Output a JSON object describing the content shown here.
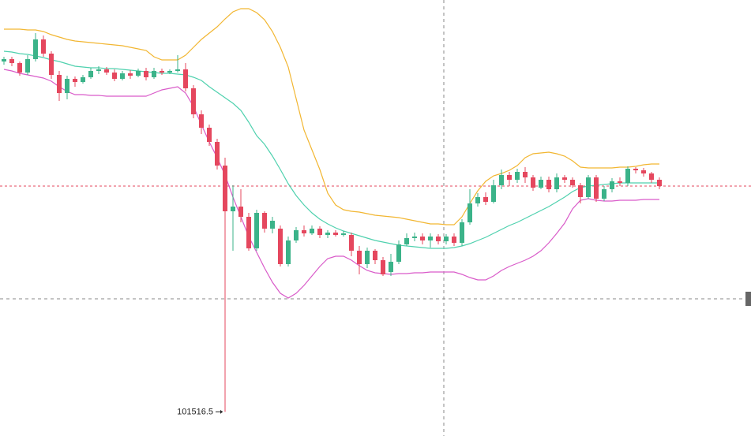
{
  "chart_data": {
    "type": "candlestick",
    "ylim": [
      101210,
      106740
    ],
    "up_color": "#3bb389",
    "down_color": "#e5475e",
    "candles": {
      "open": [
        105960,
        105990,
        105940,
        105820,
        105990,
        106240,
        106060,
        105790,
        105560,
        105740,
        105700,
        105760,
        105840,
        105860,
        105820,
        105740,
        105810,
        105780,
        105840,
        105760,
        105840,
        105820,
        105840,
        105860,
        105620,
        105290,
        105120,
        104940,
        104640,
        104060,
        104120,
        103990,
        103590,
        104040,
        103840,
        103840,
        103390,
        103690,
        103820,
        103780,
        103840,
        103760,
        103790,
        103760,
        103760,
        103560,
        103390,
        103560,
        103440,
        103290,
        103420,
        103640,
        103720,
        103740,
        103690,
        103740,
        103680,
        103740,
        103660,
        103920,
        104160,
        104240,
        104180,
        104390,
        104520,
        104460,
        104560,
        104490,
        104360,
        104460,
        104340,
        104490,
        104460,
        104390,
        104240,
        104490,
        104220,
        104340,
        104440,
        104420,
        104600,
        104580,
        104540,
        104460
      ],
      "high": [
        106020,
        106020,
        105960,
        106040,
        106320,
        106290,
        106090,
        105840,
        105780,
        105770,
        105790,
        105880,
        105900,
        105890,
        105860,
        105840,
        105850,
        105870,
        105880,
        105880,
        105870,
        105860,
        106040,
        105940,
        105660,
        105340,
        105160,
        104980,
        104740,
        104390,
        104340,
        104040,
        104080,
        104060,
        103990,
        103880,
        103740,
        103860,
        103880,
        103880,
        103870,
        103820,
        103820,
        103810,
        103790,
        103620,
        103600,
        103580,
        103480,
        103520,
        103690,
        103780,
        103790,
        103780,
        103780,
        103770,
        103770,
        103780,
        103960,
        104340,
        104290,
        104300,
        104460,
        104590,
        104560,
        104600,
        104620,
        104520,
        104500,
        104500,
        104540,
        104520,
        104490,
        104420,
        104520,
        104520,
        104380,
        104480,
        104490,
        104630,
        104620,
        104610,
        104560,
        104490
      ],
      "low": [
        105920,
        105900,
        105780,
        105790,
        105960,
        106020,
        105740,
        105460,
        105480,
        105640,
        105680,
        105740,
        105800,
        105790,
        105710,
        105720,
        105740,
        105760,
        105720,
        105740,
        105790,
        105800,
        105820,
        105580,
        105240,
        105040,
        104890,
        104590,
        101516.5,
        103560,
        103920,
        103560,
        103560,
        103790,
        103780,
        103360,
        103360,
        103660,
        103740,
        103760,
        103720,
        103720,
        103740,
        103740,
        103490,
        103260,
        103340,
        103390,
        103240,
        103240,
        103390,
        103620,
        103680,
        103640,
        103600,
        103640,
        103640,
        103620,
        103620,
        103890,
        104120,
        104140,
        104160,
        104340,
        104380,
        104420,
        104420,
        104320,
        104340,
        104300,
        104300,
        104420,
        104360,
        104160,
        104220,
        104180,
        104190,
        104300,
        104380,
        104380,
        104540,
        104500,
        104420,
        104340
      ],
      "close": [
        105990,
        105940,
        105820,
        105990,
        106240,
        106060,
        105790,
        105560,
        105740,
        105700,
        105760,
        105840,
        105860,
        105820,
        105740,
        105810,
        105780,
        105840,
        105760,
        105840,
        105820,
        105840,
        105860,
        105620,
        105290,
        105120,
        104940,
        104640,
        104060,
        104120,
        103990,
        103590,
        104040,
        103840,
        103940,
        103390,
        103690,
        103820,
        103780,
        103840,
        103760,
        103790,
        103760,
        103780,
        103560,
        103390,
        103560,
        103440,
        103260,
        103420,
        103640,
        103720,
        103740,
        103690,
        103740,
        103680,
        103740,
        103660,
        103920,
        104160,
        104240,
        104180,
        104390,
        104520,
        104460,
        104560,
        104490,
        104360,
        104460,
        104340,
        104490,
        104460,
        104390,
        104240,
        104490,
        104220,
        104340,
        104440,
        104420,
        104600,
        104580,
        104540,
        104460,
        104380
      ]
    },
    "series": [
      {
        "color": "#f2b631",
        "values": [
          106370,
          106370,
          106370,
          106360,
          106360,
          106340,
          106300,
          106270,
          106240,
          106220,
          106210,
          106200,
          106190,
          106180,
          106170,
          106160,
          106140,
          106120,
          106100,
          106020,
          105980,
          105980,
          105980,
          106040,
          106140,
          106240,
          106320,
          106400,
          106500,
          106590,
          106630,
          106630,
          106580,
          106490,
          106340,
          106140,
          105890,
          105490,
          105090,
          104840,
          104590,
          104290,
          104140,
          104080,
          104060,
          104050,
          104030,
          104010,
          104000,
          103990,
          103980,
          103960,
          103940,
          103920,
          103900,
          103900,
          103890,
          103890,
          103990,
          104160,
          104320,
          104440,
          104510,
          104540,
          104580,
          104640,
          104740,
          104790,
          104800,
          104810,
          104790,
          104760,
          104700,
          104620,
          104610,
          104610,
          104610,
          104610,
          104620,
          104620,
          104630,
          104650,
          104660,
          104660
        ]
      },
      {
        "color": "#4fd1ae",
        "values": [
          106090,
          106080,
          106060,
          106050,
          106030,
          106010,
          105980,
          105960,
          105930,
          105900,
          105890,
          105880,
          105880,
          105870,
          105870,
          105860,
          105850,
          105840,
          105830,
          105820,
          105810,
          105810,
          105800,
          105790,
          105760,
          105720,
          105640,
          105570,
          105500,
          105430,
          105340,
          105190,
          105020,
          104910,
          104760,
          104590,
          104410,
          104260,
          104140,
          104040,
          103960,
          103900,
          103850,
          103810,
          103780,
          103750,
          103720,
          103690,
          103670,
          103650,
          103630,
          103620,
          103610,
          103600,
          103590,
          103590,
          103590,
          103600,
          103620,
          103650,
          103690,
          103730,
          103780,
          103830,
          103880,
          103920,
          103970,
          104020,
          104070,
          104120,
          104180,
          104240,
          104310,
          104360,
          104380,
          104390,
          104400,
          104410,
          104420,
          104420,
          104420,
          104420,
          104420,
          104420
        ]
      },
      {
        "color": "#d95bc9",
        "values": [
          105860,
          105840,
          105810,
          105790,
          105770,
          105750,
          105710,
          105640,
          105580,
          105540,
          105540,
          105530,
          105530,
          105520,
          105520,
          105520,
          105520,
          105520,
          105520,
          105560,
          105600,
          105620,
          105640,
          105560,
          105390,
          105160,
          104940,
          104740,
          104520,
          104240,
          103990,
          103740,
          103540,
          103340,
          103160,
          103020,
          102960,
          103020,
          103120,
          103240,
          103360,
          103460,
          103490,
          103490,
          103440,
          103370,
          103310,
          103280,
          103270,
          103260,
          103270,
          103270,
          103280,
          103280,
          103290,
          103290,
          103290,
          103290,
          103260,
          103220,
          103190,
          103190,
          103240,
          103310,
          103360,
          103400,
          103440,
          103490,
          103560,
          103660,
          103780,
          103910,
          104090,
          104200,
          104220,
          104200,
          104190,
          104190,
          104200,
          104200,
          104200,
          104210,
          104210,
          104210
        ]
      }
    ]
  }
}
